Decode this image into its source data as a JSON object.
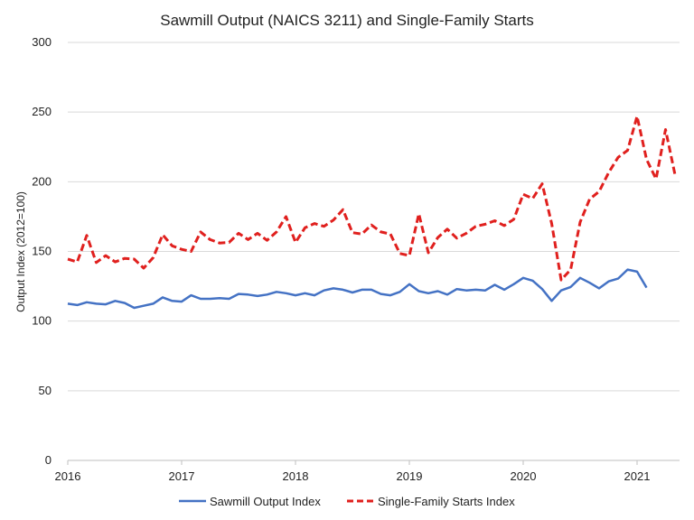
{
  "chart_data": {
    "type": "line",
    "title": "Sawmill Output (NAICS 3211) and Single-Family Starts",
    "ylabel": "Output Index (2012=100)",
    "xlabel": "",
    "ylim": [
      0,
      300
    ],
    "yticks": [
      0,
      50,
      100,
      150,
      200,
      250,
      300
    ],
    "xticks": [
      "2016",
      "2017",
      "2018",
      "2019",
      "2020",
      "2021"
    ],
    "grid": true,
    "legend": "bottom",
    "series": [
      {
        "name": "Sawmill Output Index",
        "color": "#4472C4",
        "style": "solid",
        "x": [
          "2016-01",
          "2016-02",
          "2016-03",
          "2016-04",
          "2016-05",
          "2016-06",
          "2016-07",
          "2016-08",
          "2016-09",
          "2016-10",
          "2016-11",
          "2016-12",
          "2017-01",
          "2017-02",
          "2017-03",
          "2017-04",
          "2017-05",
          "2017-06",
          "2017-07",
          "2017-08",
          "2017-09",
          "2017-10",
          "2017-11",
          "2017-12",
          "2018-01",
          "2018-02",
          "2018-03",
          "2018-04",
          "2018-05",
          "2018-06",
          "2018-07",
          "2018-08",
          "2018-09",
          "2018-10",
          "2018-11",
          "2018-12",
          "2019-01",
          "2019-02",
          "2019-03",
          "2019-04",
          "2019-05",
          "2019-06",
          "2019-07",
          "2019-08",
          "2019-09",
          "2019-10",
          "2019-11",
          "2019-12",
          "2020-01",
          "2020-02",
          "2020-03",
          "2020-04",
          "2020-05",
          "2020-06",
          "2020-07",
          "2020-08",
          "2020-09",
          "2020-10",
          "2020-11",
          "2020-12",
          "2021-01",
          "2021-02"
        ],
        "values": [
          112.5,
          111.5,
          113.5,
          112.5,
          112,
          114.5,
          113,
          109.5,
          111,
          112.5,
          117,
          114.5,
          114,
          118.5,
          116,
          116,
          116.5,
          116,
          119.5,
          119,
          118,
          119,
          121,
          120,
          118.5,
          120,
          118.5,
          122,
          123.5,
          122.5,
          120.5,
          122.5,
          122.5,
          119.5,
          118.5,
          121,
          126.5,
          121.5,
          120,
          121.5,
          119,
          123,
          122,
          122.5,
          122,
          126,
          122.5,
          126.5,
          131,
          129,
          123,
          114.5,
          122,
          124.5,
          131,
          127.5,
          123.5,
          128.5,
          130.5,
          137,
          135.5,
          124
        ]
      },
      {
        "name": "Single-Family Starts Index",
        "color": "#E0201E",
        "style": "dashed",
        "x": [
          "2016-01",
          "2016-02",
          "2016-03",
          "2016-04",
          "2016-05",
          "2016-06",
          "2016-07",
          "2016-08",
          "2016-09",
          "2016-10",
          "2016-11",
          "2016-12",
          "2017-01",
          "2017-02",
          "2017-03",
          "2017-04",
          "2017-05",
          "2017-06",
          "2017-07",
          "2017-08",
          "2017-09",
          "2017-10",
          "2017-11",
          "2017-12",
          "2018-01",
          "2018-02",
          "2018-03",
          "2018-04",
          "2018-05",
          "2018-06",
          "2018-07",
          "2018-08",
          "2018-09",
          "2018-10",
          "2018-11",
          "2018-12",
          "2019-01",
          "2019-02",
          "2019-03",
          "2019-04",
          "2019-05",
          "2019-06",
          "2019-07",
          "2019-08",
          "2019-09",
          "2019-10",
          "2019-11",
          "2019-12",
          "2020-01",
          "2020-02",
          "2020-03",
          "2020-04",
          "2020-05",
          "2020-06",
          "2020-07",
          "2020-08",
          "2020-09",
          "2020-10",
          "2020-11",
          "2020-12",
          "2021-01",
          "2021-02",
          "2021-03",
          "2021-04",
          "2021-05"
        ],
        "values": [
          144.5,
          142.5,
          161.5,
          142,
          147,
          142.5,
          145,
          144.5,
          138,
          145.5,
          162,
          154,
          151.5,
          150,
          164,
          158.5,
          156,
          156.5,
          163,
          158.5,
          163,
          158,
          164,
          175,
          156.5,
          167,
          170,
          168,
          172.5,
          180,
          163.5,
          162.5,
          169,
          164,
          162.5,
          148.5,
          147,
          177,
          149,
          160,
          166,
          159.5,
          163,
          168,
          169.5,
          172,
          168.5,
          173,
          191,
          188,
          198.5,
          170,
          129.5,
          137,
          171,
          187.5,
          193,
          206.5,
          217.5,
          222.5,
          247,
          216,
          202,
          237.5,
          205
        ]
      }
    ]
  }
}
